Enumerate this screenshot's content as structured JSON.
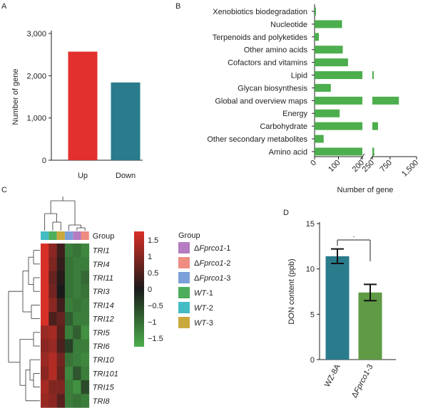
{
  "panel_labels": [
    "A",
    "B",
    "C",
    "D"
  ],
  "colors": {
    "up": "#e2302f",
    "down": "#2a7b8c",
    "pathway_bar": "#4cae4c",
    "wz8a": "#2a7b8c",
    "fprco1": "#5f9a45",
    "heat_high": "#d73027",
    "heat_mid": "#1a1a1a",
    "heat_low": "#4cae4c"
  },
  "chart_data": [
    {
      "panel": "A",
      "type": "bar",
      "ylabel": "Number of gene",
      "categories": [
        "Up",
        "Down"
      ],
      "values": [
        2570,
        1840
      ],
      "ylim": [
        0,
        3000
      ],
      "yticks": [
        "0",
        "1,000",
        "2,000",
        "3,000"
      ],
      "colors": [
        "#e2302f",
        "#2a7b8c"
      ]
    },
    {
      "panel": "B",
      "type": "bar",
      "orientation": "horizontal",
      "xlabel": "Number of gene",
      "categories": [
        "Xenobiotics biodegradation",
        "Nucleotide",
        "Terpenoids and polyketides",
        "Other amino acids",
        "Cofactors and vitamins",
        "Lipid",
        "Glycan biosynthesis",
        "Global and overview maps",
        "Energy",
        "Carbohydrate",
        "Other secondary metabolites",
        "Amino acid"
      ],
      "values": [
        5,
        115,
        18,
        118,
        140,
        260,
        68,
        1000,
        105,
        410,
        38,
        300
      ],
      "axis_break": [
        200,
        250
      ],
      "xticks": [
        "0",
        "100",
        "200",
        "250",
        "750",
        "1,500"
      ]
    },
    {
      "panel": "C",
      "type": "heatmap",
      "row_labels": [
        "TRI1",
        "TRI4",
        "TRI11",
        "TRI3",
        "TRI14",
        "TRI12",
        "TRI5",
        "TRI6",
        "TRI10",
        "TRI101",
        "TRI15",
        "TRI8"
      ],
      "group_header": "Group",
      "legend_title": "Group",
      "legend_groups": [
        {
          "prefix": "Δ",
          "name": "Fprco1",
          "suffix": "-1",
          "color": "#b57cc1"
        },
        {
          "prefix": "Δ",
          "name": "Fprco1",
          "suffix": "-2",
          "color": "#ef8c82"
        },
        {
          "prefix": "Δ",
          "name": "Fprco1",
          "suffix": "-3",
          "color": "#7c9fd9"
        },
        {
          "prefix": "",
          "name": "WT",
          "suffix": "-1",
          "color": "#4cae5c"
        },
        {
          "prefix": "",
          "name": "WT",
          "suffix": "-2",
          "color": "#44bcc4"
        },
        {
          "prefix": "",
          "name": "WT",
          "suffix": "-3",
          "color": "#c9a93c"
        }
      ],
      "column_groups": [
        "WT-2",
        "WT-1",
        "WT-3",
        "ΔFprco1-3",
        "ΔFprco1-1",
        "ΔFprco1-2"
      ],
      "colorbar_ticks": [
        "1.5",
        "1",
        "0.5",
        "0",
        "−0.5",
        "−1",
        "−1.5"
      ],
      "colorbar_range": [
        -1.5,
        1.5
      ],
      "values": [
        [
          1.6,
          0.9,
          0.3,
          -1.0,
          -0.9,
          -1.1
        ],
        [
          1.6,
          0.8,
          0.2,
          -0.9,
          -1.0,
          -1.0
        ],
        [
          1.7,
          0.6,
          0.1,
          -0.9,
          -1.0,
          -0.8
        ],
        [
          1.7,
          0.7,
          0.0,
          -0.9,
          -1.0,
          -0.9
        ],
        [
          1.6,
          0.9,
          0.3,
          -1.0,
          -0.9,
          -1.0
        ],
        [
          1.5,
          0.4,
          0.6,
          -0.7,
          -1.0,
          -1.0
        ],
        [
          1.0,
          1.1,
          0.5,
          -1.0,
          -0.7,
          -1.2
        ],
        [
          0.9,
          1.0,
          0.4,
          -0.4,
          -1.0,
          -1.0
        ],
        [
          1.0,
          1.2,
          0.7,
          -0.9,
          -1.0,
          -1.1
        ],
        [
          0.9,
          1.2,
          0.6,
          -1.1,
          -0.6,
          -1.0
        ],
        [
          1.1,
          0.8,
          0.8,
          -1.0,
          -1.2,
          -0.5
        ],
        [
          1.0,
          0.9,
          0.5,
          -1.0,
          -0.9,
          -1.0
        ]
      ]
    },
    {
      "panel": "D",
      "type": "bar",
      "ylabel": "DON content (ppb)",
      "categories": [
        {
          "prefix": "",
          "name": "WZ-8A"
        },
        {
          "prefix": "Δ",
          "name": "Fprco1",
          "suffix": "-3"
        }
      ],
      "values": [
        11.4,
        7.4
      ],
      "errors": [
        0.8,
        0.9
      ],
      "ylim": [
        0,
        15
      ],
      "yticks": [
        "0",
        "5",
        "10",
        "15"
      ],
      "significance": ".",
      "colors": [
        "#2a7b8c",
        "#5f9a45"
      ]
    }
  ]
}
